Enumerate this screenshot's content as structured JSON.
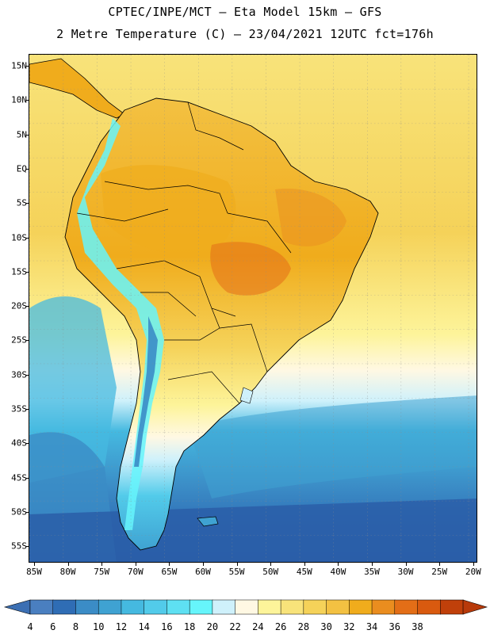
{
  "header": {
    "title_line1": "CPTEC/INPE/MCT –  Eta Model 15km – GFS",
    "title_line2": "2 Metre Temperature (C) – 23/04/2021 12UTC fct=176h"
  },
  "axes": {
    "lat_labels": [
      "15N",
      "10N",
      "5N",
      "EQ",
      "5S",
      "10S",
      "15S",
      "20S",
      "25S",
      "30S",
      "35S",
      "40S",
      "45S",
      "50S",
      "55S"
    ],
    "lon_labels": [
      "85W",
      "80W",
      "75W",
      "70W",
      "65W",
      "60W",
      "55W",
      "50W",
      "45W",
      "40W",
      "35W",
      "30W",
      "25W",
      "20W"
    ]
  },
  "legend": {
    "levels": [
      "4",
      "6",
      "8",
      "10",
      "12",
      "14",
      "16",
      "18",
      "20",
      "22",
      "24",
      "26",
      "28",
      "30",
      "32",
      "34",
      "36",
      "38"
    ],
    "colors": [
      "#4a7fc0",
      "#2f6db5",
      "#3b8cc6",
      "#3fa2d2",
      "#45b9e0",
      "#52cbea",
      "#5ee0f2",
      "#66f5fb",
      "#cff1fb",
      "#fff8e3",
      "#fdf49a",
      "#f8e37a",
      "#f5d259",
      "#f3c142",
      "#f0ac1c",
      "#ea8d1f",
      "#e36e17",
      "#d95a0f",
      "#c0400a"
    ],
    "low_arrow_color": "#3c6fb3",
    "high_arrow_color": "#b83a0a"
  },
  "map": {
    "ocean_north_color": "#f8e37a",
    "ocean_mid_color": "#fdf49a",
    "ocean_cool_color": "#45b9e0",
    "ocean_cold_color": "#2f6db5",
    "ocean_coldest_color": "#2a5ea8",
    "land_hot_color": "#f3c142",
    "land_hotter_color": "#f0ac1c",
    "andes_color": "#66f5fb",
    "andes_cold_color": "#3b8cc6"
  }
}
